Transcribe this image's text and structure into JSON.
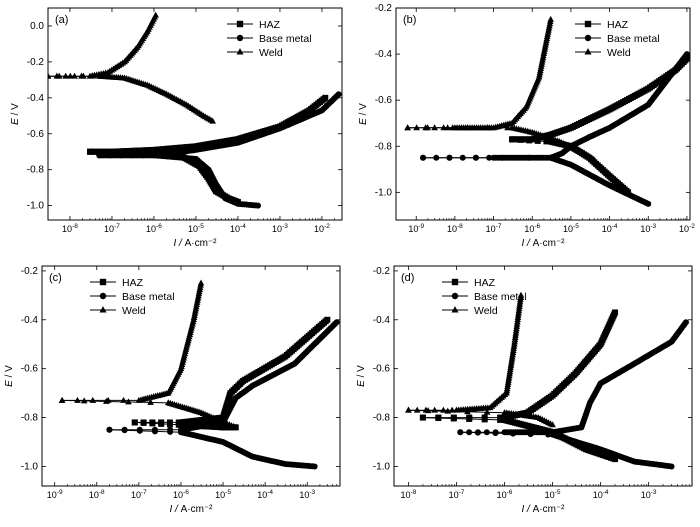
{
  "figure": {
    "panels_order": [
      "a",
      "b",
      "c",
      "d"
    ]
  },
  "chart_data": [
    {
      "type": "line",
      "panel_label": "(a)",
      "xlabel": "I / A·cm⁻²",
      "ylabel": "E / V",
      "x_scale": "log",
      "xlim": [
        3e-09,
        0.03
      ],
      "ylim": [
        -1.08,
        0.1
      ],
      "x_ticks": [
        1e-08,
        1e-07,
        1e-06,
        1e-05,
        0.0001,
        0.001,
        0.01
      ],
      "x_tick_labels": [
        "10-8",
        "10-7",
        "10-6",
        "10-5",
        "10-4",
        "10-3",
        "10-2"
      ],
      "y_ticks": [
        0.0,
        -0.2,
        -0.4,
        -0.6,
        -0.8,
        -1.0
      ],
      "y_tick_labels": [
        "0.0",
        "-0.2",
        "-0.4",
        "-0.6",
        "-0.8",
        "-1.0"
      ],
      "legend": {
        "position": "top-right",
        "entries": [
          "HAZ",
          "Base metal",
          "Weld"
        ]
      },
      "series": [
        {
          "name": "HAZ",
          "marker": "square",
          "anodic": [
            [
              3e-08,
              -0.7
            ],
            [
              1e-07,
              -0.7
            ],
            [
              1e-06,
              -0.69
            ],
            [
              1e-05,
              -0.67
            ],
            [
              0.0001,
              -0.63
            ],
            [
              0.001,
              -0.56
            ],
            [
              0.005,
              -0.47
            ],
            [
              0.012,
              -0.4
            ]
          ],
          "cathodic": [
            [
              3e-08,
              -0.7
            ],
            [
              1e-06,
              -0.71
            ],
            [
              5e-06,
              -0.73
            ],
            [
              1.2e-05,
              -0.78
            ],
            [
              2e-05,
              -0.85
            ],
            [
              3e-05,
              -0.92
            ],
            [
              6e-05,
              -0.96
            ],
            [
              0.0001,
              -0.98
            ]
          ]
        },
        {
          "name": "Base metal",
          "marker": "circle",
          "anodic": [
            [
              5e-08,
              -0.72
            ],
            [
              1e-07,
              -0.72
            ],
            [
              1e-06,
              -0.72
            ],
            [
              1e-05,
              -0.69
            ],
            [
              0.0001,
              -0.65
            ],
            [
              0.001,
              -0.57
            ],
            [
              0.01,
              -0.47
            ],
            [
              0.025,
              -0.38
            ]
          ],
          "cathodic": [
            [
              5e-08,
              -0.72
            ],
            [
              1e-06,
              -0.72
            ],
            [
              1e-05,
              -0.74
            ],
            [
              2e-05,
              -0.8
            ],
            [
              3e-05,
              -0.88
            ],
            [
              5e-05,
              -0.96
            ],
            [
              0.0001,
              -0.99
            ],
            [
              0.0003,
              -1.0
            ]
          ]
        },
        {
          "name": "Weld",
          "marker": "triangle",
          "anodic": [
            [
              3e-09,
              -0.28
            ],
            [
              3e-08,
              -0.28
            ],
            [
              8e-08,
              -0.26
            ],
            [
              2e-07,
              -0.2
            ],
            [
              4e-07,
              -0.12
            ],
            [
              7e-07,
              -0.03
            ],
            [
              1.1e-06,
              0.06
            ]
          ],
          "cathodic": [
            [
              3e-09,
              -0.28
            ],
            [
              5e-08,
              -0.28
            ],
            [
              2e-07,
              -0.29
            ],
            [
              7e-07,
              -0.33
            ],
            [
              2e-06,
              -0.38
            ],
            [
              6e-06,
              -0.44
            ],
            [
              1.5e-05,
              -0.5
            ],
            [
              2.5e-05,
              -0.53
            ]
          ]
        }
      ]
    },
    {
      "type": "line",
      "panel_label": "(b)",
      "xlabel": "I / A·cm⁻²",
      "ylabel": "E / V",
      "x_scale": "log",
      "xlim": [
        3e-10,
        0.012
      ],
      "ylim": [
        -1.12,
        -0.2
      ],
      "x_ticks": [
        1e-09,
        1e-08,
        1e-07,
        1e-06,
        1e-05,
        0.0001,
        0.001,
        0.01
      ],
      "x_tick_labels": [
        "10-9",
        "10-8",
        "10-7",
        "10-6",
        "10-5",
        "10-4",
        "10-3",
        "10-2"
      ],
      "y_ticks": [
        -0.2,
        -0.4,
        -0.6,
        -0.8,
        -1.0
      ],
      "y_tick_labels": [
        "-0.2",
        "-0.4",
        "-0.6",
        "-0.8",
        "-1.0"
      ],
      "legend": {
        "position": "top-right",
        "entries": [
          "HAZ",
          "Base metal",
          "Weld"
        ]
      },
      "series": [
        {
          "name": "HAZ",
          "marker": "square",
          "anodic": [
            [
              3e-07,
              -0.77
            ],
            [
              1e-06,
              -0.77
            ],
            [
              3e-06,
              -0.75
            ],
            [
              1e-05,
              -0.72
            ],
            [
              0.0001,
              -0.64
            ],
            [
              0.001,
              -0.55
            ],
            [
              0.005,
              -0.47
            ],
            [
              0.01,
              -0.42
            ]
          ],
          "cathodic": [
            [
              3e-07,
              -0.77
            ],
            [
              3e-06,
              -0.78
            ],
            [
              1e-05,
              -0.8
            ],
            [
              3e-05,
              -0.85
            ],
            [
              0.0001,
              -0.93
            ],
            [
              0.0003,
              -1.0
            ]
          ]
        },
        {
          "name": "Base metal",
          "marker": "circle",
          "anodic": [
            [
              1.5e-09,
              -0.85
            ],
            [
              1e-07,
              -0.85
            ],
            [
              1e-06,
              -0.85
            ],
            [
              3e-06,
              -0.85
            ],
            [
              6e-06,
              -0.83
            ],
            [
              1e-05,
              -0.8
            ],
            [
              3e-05,
              -0.76
            ],
            [
              0.0001,
              -0.72
            ],
            [
              0.001,
              -0.62
            ],
            [
              0.01,
              -0.4
            ]
          ],
          "cathodic": [
            [
              1.5e-09,
              -0.85
            ],
            [
              3e-06,
              -0.85
            ],
            [
              1e-05,
              -0.88
            ],
            [
              0.0001,
              -0.97
            ],
            [
              0.001,
              -1.05
            ]
          ]
        },
        {
          "name": "Weld",
          "marker": "triangle",
          "anodic": [
            [
              6e-10,
              -0.72
            ],
            [
              1e-08,
              -0.72
            ],
            [
              1e-07,
              -0.72
            ],
            [
              3e-07,
              -0.7
            ],
            [
              7e-07,
              -0.63
            ],
            [
              1.5e-06,
              -0.5
            ],
            [
              3e-06,
              -0.25
            ]
          ],
          "cathodic": [
            [
              6e-10,
              -0.72
            ],
            [
              3e-07,
              -0.72
            ],
            [
              1e-06,
              -0.74
            ],
            [
              5e-06,
              -0.78
            ],
            [
              2e-05,
              -0.83
            ],
            [
              4e-05,
              -0.86
            ]
          ]
        }
      ]
    },
    {
      "type": "line",
      "panel_label": "(c)",
      "xlabel": "I / A·cm⁻²",
      "ylabel": "E / V",
      "x_scale": "log",
      "xlim": [
        5e-10,
        0.006
      ],
      "ylim": [
        -1.08,
        -0.18
      ],
      "x_ticks": [
        1e-09,
        1e-08,
        1e-07,
        1e-06,
        1e-05,
        0.0001,
        0.001
      ],
      "x_tick_labels": [
        "10-9",
        "10-8",
        "10-7",
        "10-6",
        "10-5",
        "10-4",
        "10-3"
      ],
      "y_ticks": [
        -0.2,
        -0.4,
        -0.6,
        -0.8,
        -1.0
      ],
      "y_tick_labels": [
        "-0.2",
        "-0.4",
        "-0.6",
        "-0.8",
        "-1.0"
      ],
      "legend": {
        "position": "top-left",
        "entries": [
          "HAZ",
          "Base metal",
          "Weld"
        ]
      },
      "series": [
        {
          "name": "HAZ",
          "marker": "square",
          "anodic": [
            [
              8e-08,
              -0.82
            ],
            [
              1e-06,
              -0.82
            ],
            [
              1e-05,
              -0.8
            ],
            [
              1.5e-05,
              -0.7
            ],
            [
              3e-05,
              -0.65
            ],
            [
              0.0003,
              -0.55
            ],
            [
              0.003,
              -0.4
            ]
          ],
          "cathodic": [
            [
              8e-08,
              -0.82
            ],
            [
              1e-06,
              -0.83
            ],
            [
              1e-05,
              -0.84
            ],
            [
              2e-05,
              -0.84
            ]
          ]
        },
        {
          "name": "Base metal",
          "marker": "circle",
          "anodic": [
            [
              2e-08,
              -0.85
            ],
            [
              1e-06,
              -0.85
            ],
            [
              1e-05,
              -0.82
            ],
            [
              2e-05,
              -0.72
            ],
            [
              5e-05,
              -0.67
            ],
            [
              0.0005,
              -0.58
            ],
            [
              0.005,
              -0.41
            ]
          ],
          "cathodic": [
            [
              2e-08,
              -0.85
            ],
            [
              1e-06,
              -0.86
            ],
            [
              1e-05,
              -0.9
            ],
            [
              5e-05,
              -0.96
            ],
            [
              0.0003,
              -0.99
            ],
            [
              0.0015,
              -1.0
            ]
          ]
        },
        {
          "name": "Weld",
          "marker": "triangle",
          "anodic": [
            [
              1.5e-09,
              -0.73
            ],
            [
              1e-07,
              -0.73
            ],
            [
              5e-07,
              -0.7
            ],
            [
              1e-06,
              -0.6
            ],
            [
              2e-06,
              -0.4
            ],
            [
              3e-06,
              -0.25
            ]
          ],
          "cathodic": [
            [
              1.5e-09,
              -0.73
            ],
            [
              5e-07,
              -0.74
            ],
            [
              3e-06,
              -0.78
            ],
            [
              1e-05,
              -0.82
            ],
            [
              2e-05,
              -0.84
            ]
          ]
        }
      ]
    },
    {
      "type": "line",
      "panel_label": "(d)",
      "xlabel": "I / A·cm⁻²",
      "ylabel": "E / V",
      "x_scale": "log",
      "xlim": [
        5e-09,
        0.008
      ],
      "ylim": [
        -1.08,
        -0.18
      ],
      "x_ticks": [
        1e-08,
        1e-07,
        1e-06,
        1e-05,
        0.0001,
        0.001
      ],
      "x_tick_labels": [
        "10-8",
        "10-7",
        "10-6",
        "10-5",
        "10-4",
        "10-3"
      ],
      "y_ticks": [
        -0.2,
        -0.4,
        -0.6,
        -0.8,
        -1.0
      ],
      "y_tick_labels": [
        "-0.2",
        "-0.4",
        "-0.6",
        "-0.8",
        "-1.0"
      ],
      "legend": {
        "position": "top-left",
        "entries": [
          "HAZ",
          "Base metal",
          "Weld"
        ]
      },
      "series": [
        {
          "name": "HAZ",
          "marker": "square",
          "anodic": [
            [
              2e-08,
              -0.8
            ],
            [
              1e-06,
              -0.8
            ],
            [
              3e-06,
              -0.78
            ],
            [
              1e-05,
              -0.71
            ],
            [
              3e-05,
              -0.62
            ],
            [
              0.0001,
              -0.5
            ],
            [
              0.0002,
              -0.37
            ]
          ],
          "cathodic": [
            [
              2e-08,
              -0.8
            ],
            [
              1e-06,
              -0.81
            ],
            [
              1e-05,
              -0.86
            ],
            [
              5e-05,
              -0.93
            ],
            [
              0.0002,
              -0.97
            ]
          ]
        },
        {
          "name": "Base metal",
          "marker": "circle",
          "anodic": [
            [
              1.2e-07,
              -0.86
            ],
            [
              1e-06,
              -0.86
            ],
            [
              1e-05,
              -0.86
            ],
            [
              4e-05,
              -0.84
            ],
            [
              6e-05,
              -0.74
            ],
            [
              0.0001,
              -0.66
            ],
            [
              0.0005,
              -0.58
            ],
            [
              0.003,
              -0.49
            ],
            [
              0.006,
              -0.41
            ]
          ],
          "cathodic": [
            [
              1.2e-07,
              -0.86
            ],
            [
              1e-05,
              -0.87
            ],
            [
              0.0001,
              -0.93
            ],
            [
              0.0005,
              -0.98
            ],
            [
              0.003,
              -1.0
            ]
          ]
        },
        {
          "name": "Weld",
          "marker": "triangle",
          "anodic": [
            [
              1e-08,
              -0.77
            ],
            [
              1e-07,
              -0.77
            ],
            [
              5e-07,
              -0.76
            ],
            [
              1.1e-06,
              -0.7
            ],
            [
              1.6e-06,
              -0.5
            ],
            [
              2.2e-06,
              -0.3
            ]
          ],
          "cathodic": [
            [
              1e-08,
              -0.77
            ],
            [
              1e-06,
              -0.78
            ],
            [
              5e-06,
              -0.8
            ],
            [
              1e-05,
              -0.83
            ]
          ]
        }
      ]
    }
  ]
}
